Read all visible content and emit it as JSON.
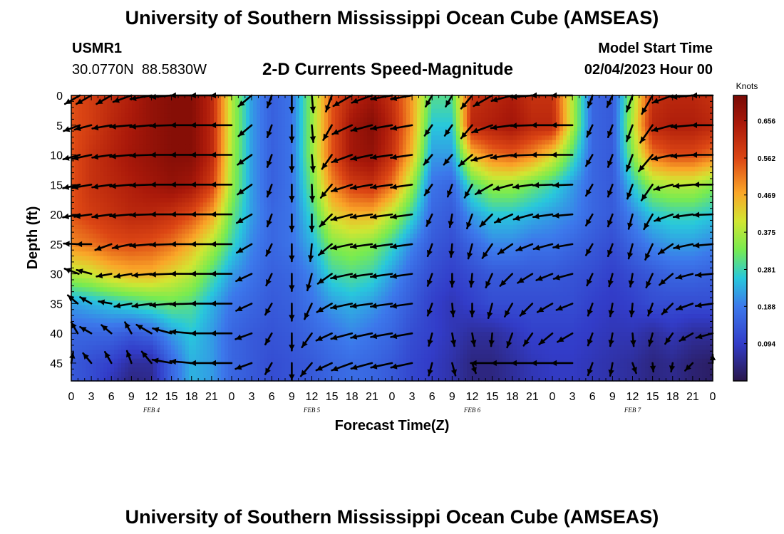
{
  "header": {
    "title": "University of Southern Mississippi Ocean Cube (AMSEAS)",
    "station": "USMR1",
    "coords": "30.0770N  88.5830W",
    "plot_name": "2-D Currents Speed-Magnitude",
    "model_label": "Model Start Time",
    "model_time": "02/04/2023 Hour 00"
  },
  "footer": {
    "title": "University of Southern Mississippi Ocean Cube (AMSEAS)"
  },
  "chart_data": {
    "type": "heatmap",
    "title": "2-D Currents Speed-Magnitude",
    "xlabel": "Forecast Time(Z)",
    "ylabel": "Depth (ft)",
    "x_ticks": [
      "0",
      "3",
      "6",
      "9",
      "12",
      "15",
      "18",
      "21",
      "0",
      "3",
      "6",
      "9",
      "12",
      "15",
      "18",
      "21",
      "0",
      "3",
      "6",
      "9",
      "12",
      "15",
      "18",
      "21",
      "0",
      "3",
      "6",
      "9",
      "12",
      "15",
      "18",
      "21",
      "0"
    ],
    "x_range_hours": [
      0,
      96
    ],
    "day_labels": [
      {
        "label": "FEB 4",
        "hour": 12
      },
      {
        "label": "FEB 5",
        "hour": 36
      },
      {
        "label": "FEB 6",
        "hour": 60
      },
      {
        "label": "FEB 7",
        "hour": 84
      }
    ],
    "y_ticks": [
      0,
      5,
      10,
      15,
      20,
      25,
      30,
      35,
      40,
      45
    ],
    "y_range_ft": [
      0,
      48
    ],
    "colorbar": {
      "unit": "Knots",
      "ticks": [
        "0.656",
        "0.562",
        "0.469",
        "0.375",
        "0.281",
        "0.188",
        "0.094"
      ],
      "tick_values": [
        0.656,
        0.562,
        0.469,
        0.375,
        0.281,
        0.188,
        0.094
      ],
      "range": [
        0.0,
        0.72
      ]
    },
    "speed_field": {
      "hours": [
        0,
        3,
        6,
        9,
        12,
        15,
        18,
        21,
        24,
        27,
        30,
        33,
        36,
        39,
        42,
        45,
        48,
        51,
        54,
        57,
        60,
        63,
        66,
        69,
        72,
        75,
        78,
        81,
        84,
        87,
        90,
        93,
        96
      ],
      "depths_ft": [
        0,
        5,
        10,
        15,
        20,
        25,
        30,
        35,
        40,
        45,
        48
      ],
      "values": [
        [
          0.55,
          0.58,
          0.61,
          0.64,
          0.68,
          0.7,
          0.7,
          0.62,
          0.38,
          0.22,
          0.15,
          0.18,
          0.35,
          0.55,
          0.62,
          0.66,
          0.6,
          0.48,
          0.3,
          0.3,
          0.6,
          0.62,
          0.64,
          0.6,
          0.6,
          0.38,
          0.16,
          0.14,
          0.36,
          0.6,
          0.62,
          0.62,
          0.6
        ],
        [
          0.55,
          0.58,
          0.62,
          0.65,
          0.68,
          0.7,
          0.7,
          0.62,
          0.38,
          0.22,
          0.15,
          0.18,
          0.35,
          0.55,
          0.66,
          0.7,
          0.62,
          0.48,
          0.26,
          0.26,
          0.62,
          0.64,
          0.66,
          0.62,
          0.62,
          0.38,
          0.16,
          0.14,
          0.38,
          0.62,
          0.64,
          0.64,
          0.62
        ],
        [
          0.55,
          0.6,
          0.63,
          0.66,
          0.68,
          0.7,
          0.7,
          0.62,
          0.37,
          0.22,
          0.15,
          0.18,
          0.35,
          0.55,
          0.66,
          0.68,
          0.6,
          0.45,
          0.22,
          0.22,
          0.45,
          0.52,
          0.54,
          0.5,
          0.42,
          0.3,
          0.16,
          0.14,
          0.34,
          0.52,
          0.56,
          0.56,
          0.52
        ],
        [
          0.55,
          0.6,
          0.62,
          0.64,
          0.66,
          0.68,
          0.66,
          0.58,
          0.36,
          0.22,
          0.15,
          0.18,
          0.32,
          0.5,
          0.58,
          0.6,
          0.52,
          0.36,
          0.18,
          0.16,
          0.3,
          0.36,
          0.36,
          0.32,
          0.28,
          0.22,
          0.16,
          0.14,
          0.26,
          0.36,
          0.38,
          0.38,
          0.34
        ],
        [
          0.55,
          0.58,
          0.6,
          0.62,
          0.62,
          0.6,
          0.56,
          0.48,
          0.32,
          0.22,
          0.16,
          0.18,
          0.28,
          0.42,
          0.46,
          0.46,
          0.38,
          0.28,
          0.16,
          0.14,
          0.22,
          0.26,
          0.26,
          0.24,
          0.22,
          0.2,
          0.16,
          0.14,
          0.2,
          0.26,
          0.28,
          0.28,
          0.26
        ],
        [
          0.5,
          0.52,
          0.55,
          0.56,
          0.55,
          0.52,
          0.46,
          0.38,
          0.28,
          0.2,
          0.16,
          0.18,
          0.24,
          0.34,
          0.36,
          0.34,
          0.28,
          0.2,
          0.14,
          0.12,
          0.16,
          0.2,
          0.2,
          0.18,
          0.18,
          0.16,
          0.14,
          0.12,
          0.16,
          0.2,
          0.22,
          0.22,
          0.2
        ],
        [
          0.38,
          0.4,
          0.44,
          0.46,
          0.46,
          0.42,
          0.38,
          0.3,
          0.22,
          0.18,
          0.15,
          0.16,
          0.2,
          0.28,
          0.3,
          0.28,
          0.22,
          0.16,
          0.12,
          0.1,
          0.12,
          0.14,
          0.14,
          0.14,
          0.14,
          0.13,
          0.12,
          0.1,
          0.12,
          0.14,
          0.16,
          0.16,
          0.15
        ],
        [
          0.22,
          0.24,
          0.26,
          0.28,
          0.3,
          0.32,
          0.3,
          0.24,
          0.18,
          0.16,
          0.14,
          0.15,
          0.18,
          0.22,
          0.24,
          0.22,
          0.18,
          0.14,
          0.1,
          0.08,
          0.1,
          0.12,
          0.12,
          0.12,
          0.12,
          0.12,
          0.1,
          0.09,
          0.1,
          0.12,
          0.12,
          0.12,
          0.12
        ],
        [
          0.16,
          0.16,
          0.16,
          0.14,
          0.16,
          0.22,
          0.26,
          0.22,
          0.16,
          0.14,
          0.13,
          0.14,
          0.16,
          0.18,
          0.2,
          0.18,
          0.16,
          0.12,
          0.1,
          0.08,
          0.06,
          0.06,
          0.08,
          0.1,
          0.1,
          0.1,
          0.09,
          0.08,
          0.08,
          0.06,
          0.08,
          0.06,
          0.06
        ],
        [
          0.14,
          0.12,
          0.1,
          0.06,
          0.06,
          0.16,
          0.24,
          0.22,
          0.16,
          0.14,
          0.12,
          0.13,
          0.14,
          0.16,
          0.17,
          0.16,
          0.14,
          0.11,
          0.09,
          0.07,
          0.04,
          0.04,
          0.06,
          0.08,
          0.09,
          0.09,
          0.08,
          0.07,
          0.06,
          0.04,
          0.05,
          0.03,
          0.02
        ],
        [
          0.14,
          0.12,
          0.08,
          0.04,
          0.05,
          0.16,
          0.24,
          0.22,
          0.16,
          0.14,
          0.12,
          0.13,
          0.14,
          0.16,
          0.17,
          0.16,
          0.14,
          0.11,
          0.09,
          0.07,
          0.04,
          0.04,
          0.06,
          0.08,
          0.09,
          0.09,
          0.08,
          0.07,
          0.06,
          0.04,
          0.05,
          0.03,
          0.02
        ]
      ]
    },
    "current_vectors": {
      "hours": [
        0,
        3,
        6,
        9,
        12,
        15,
        18,
        21,
        24,
        27,
        30,
        33,
        36,
        39,
        42,
        45,
        48,
        51,
        54,
        57,
        60,
        63,
        66,
        69,
        72,
        75,
        78,
        81,
        84,
        87,
        90,
        93,
        96
      ],
      "depths_ft": [
        0,
        5,
        10,
        15,
        20,
        25,
        30,
        35,
        40,
        45
      ],
      "direction_to_deg": [
        [
          240,
          240,
          240,
          250,
          260,
          265,
          270,
          270,
          270,
          230,
          200,
          180,
          175,
          200,
          240,
          250,
          260,
          260,
          210,
          210,
          220,
          240,
          255,
          265,
          270,
          270,
          200,
          205,
          200,
          210,
          250,
          265,
          270
        ],
        [
          250,
          255,
          260,
          265,
          265,
          268,
          270,
          270,
          270,
          230,
          200,
          180,
          175,
          210,
          245,
          255,
          260,
          260,
          215,
          215,
          220,
          250,
          262,
          268,
          270,
          270,
          205,
          200,
          200,
          215,
          255,
          265,
          270
        ],
        [
          255,
          258,
          262,
          265,
          268,
          270,
          270,
          270,
          270,
          235,
          200,
          180,
          175,
          215,
          250,
          258,
          262,
          262,
          220,
          220,
          230,
          255,
          262,
          268,
          270,
          270,
          210,
          200,
          200,
          220,
          258,
          266,
          270
        ],
        [
          258,
          260,
          262,
          265,
          268,
          270,
          270,
          270,
          270,
          235,
          200,
          180,
          178,
          220,
          252,
          260,
          262,
          262,
          215,
          200,
          210,
          240,
          255,
          262,
          268,
          268,
          210,
          200,
          200,
          215,
          255,
          265,
          270
        ],
        [
          260,
          262,
          262,
          265,
          268,
          270,
          270,
          270,
          270,
          240,
          200,
          180,
          180,
          225,
          255,
          262,
          262,
          262,
          205,
          190,
          200,
          225,
          245,
          255,
          262,
          265,
          210,
          200,
          195,
          210,
          250,
          262,
          268
        ],
        [
          272,
          270,
          250,
          258,
          265,
          268,
          270,
          270,
          270,
          240,
          205,
          180,
          185,
          230,
          258,
          262,
          262,
          262,
          200,
          185,
          195,
          215,
          235,
          248,
          255,
          260,
          210,
          200,
          195,
          205,
          235,
          258,
          265
        ],
        [
          290,
          285,
          260,
          260,
          265,
          268,
          270,
          270,
          270,
          245,
          205,
          180,
          195,
          235,
          258,
          262,
          262,
          262,
          200,
          180,
          185,
          205,
          225,
          238,
          248,
          255,
          205,
          195,
          190,
          205,
          230,
          255,
          265
        ],
        [
          310,
          300,
          280,
          260,
          262,
          265,
          268,
          270,
          270,
          245,
          210,
          180,
          205,
          240,
          258,
          262,
          262,
          262,
          200,
          175,
          180,
          195,
          210,
          225,
          240,
          248,
          200,
          190,
          185,
          200,
          225,
          250,
          262
        ],
        [
          330,
          300,
          310,
          330,
          300,
          285,
          275,
          270,
          270,
          250,
          210,
          180,
          215,
          245,
          255,
          258,
          260,
          260,
          195,
          170,
          170,
          185,
          200,
          215,
          230,
          240,
          200,
          190,
          175,
          195,
          215,
          240,
          255
        ],
        [
          10,
          320,
          330,
          340,
          320,
          280,
          275,
          270,
          270,
          250,
          210,
          180,
          220,
          245,
          250,
          255,
          258,
          258,
          195,
          165,
          160,
          270,
          270,
          270,
          270,
          270,
          200,
          190,
          160,
          175,
          190,
          225,
          0
        ]
      ],
      "relative_length": [
        [
          0.8,
          0.8,
          0.8,
          0.9,
          1.0,
          1.0,
          1.0,
          1.0,
          1.0,
          0.8,
          0.6,
          0.8,
          0.8,
          0.8,
          1.0,
          1.0,
          1.0,
          1.0,
          0.6,
          0.6,
          0.8,
          1.0,
          1.0,
          1.0,
          1.0,
          1.0,
          0.6,
          0.6,
          0.8,
          1.0,
          1.0,
          1.0,
          1.0
        ],
        [
          0.8,
          0.8,
          0.9,
          1.0,
          1.0,
          1.0,
          1.0,
          1.0,
          1.0,
          0.8,
          0.6,
          0.8,
          0.8,
          0.8,
          1.0,
          1.0,
          1.0,
          1.0,
          0.6,
          0.6,
          0.8,
          1.0,
          1.0,
          1.0,
          1.0,
          1.0,
          0.6,
          0.6,
          0.8,
          1.0,
          1.0,
          1.0,
          1.0
        ],
        [
          0.8,
          0.9,
          0.9,
          1.0,
          1.0,
          1.0,
          1.0,
          1.0,
          1.0,
          0.8,
          0.6,
          0.8,
          0.8,
          0.8,
          1.0,
          1.0,
          1.0,
          1.0,
          0.6,
          0.6,
          0.8,
          1.0,
          1.0,
          1.0,
          1.0,
          1.0,
          0.6,
          0.6,
          0.8,
          1.0,
          1.0,
          1.0,
          1.0
        ],
        [
          0.8,
          0.9,
          0.9,
          1.0,
          1.0,
          1.0,
          1.0,
          1.0,
          1.0,
          0.8,
          0.6,
          0.8,
          0.8,
          0.8,
          1.0,
          1.0,
          1.0,
          1.0,
          0.6,
          0.6,
          0.7,
          0.9,
          0.9,
          0.9,
          0.9,
          0.9,
          0.6,
          0.6,
          0.7,
          0.9,
          0.9,
          0.9,
          0.9
        ],
        [
          0.8,
          0.8,
          0.9,
          1.0,
          1.0,
          1.0,
          1.0,
          1.0,
          1.0,
          0.8,
          0.6,
          0.8,
          0.8,
          0.8,
          1.0,
          1.0,
          1.0,
          1.0,
          0.6,
          0.6,
          0.7,
          0.8,
          0.9,
          0.9,
          0.9,
          0.9,
          0.6,
          0.6,
          0.7,
          0.8,
          0.9,
          0.9,
          0.9
        ],
        [
          0.7,
          0.7,
          0.8,
          0.9,
          1.0,
          1.0,
          1.0,
          1.0,
          1.0,
          0.8,
          0.6,
          0.8,
          0.8,
          0.8,
          1.0,
          1.0,
          1.0,
          1.0,
          0.6,
          0.6,
          0.7,
          0.8,
          0.8,
          0.8,
          0.9,
          0.9,
          0.6,
          0.6,
          0.7,
          0.8,
          0.8,
          0.9,
          0.9
        ],
        [
          0.7,
          0.7,
          0.7,
          0.8,
          0.9,
          1.0,
          1.0,
          1.0,
          1.0,
          0.8,
          0.6,
          0.8,
          0.8,
          0.8,
          1.0,
          1.0,
          1.0,
          1.0,
          0.6,
          0.6,
          0.6,
          0.7,
          0.8,
          0.8,
          0.8,
          0.9,
          0.6,
          0.6,
          0.6,
          0.7,
          0.8,
          0.8,
          0.8
        ],
        [
          0.6,
          0.6,
          0.6,
          0.8,
          0.9,
          1.0,
          1.0,
          1.0,
          1.0,
          0.8,
          0.6,
          0.8,
          0.8,
          0.8,
          1.0,
          1.0,
          1.0,
          1.0,
          0.6,
          0.6,
          0.6,
          0.7,
          0.7,
          0.8,
          0.8,
          0.8,
          0.6,
          0.6,
          0.6,
          0.6,
          0.7,
          0.8,
          0.8
        ],
        [
          0.6,
          0.6,
          0.6,
          0.6,
          0.8,
          0.9,
          1.0,
          1.0,
          1.0,
          0.8,
          0.6,
          0.8,
          0.8,
          0.8,
          1.0,
          1.0,
          1.0,
          1.0,
          0.6,
          0.6,
          0.6,
          0.6,
          0.7,
          0.7,
          0.8,
          0.8,
          0.6,
          0.6,
          0.6,
          0.6,
          0.6,
          0.7,
          0.8
        ],
        [
          0.5,
          0.6,
          0.6,
          0.6,
          0.7,
          0.9,
          1.0,
          1.0,
          1.0,
          0.8,
          0.6,
          0.8,
          0.8,
          0.8,
          1.0,
          1.0,
          1.0,
          1.0,
          0.6,
          0.6,
          0.5,
          1.0,
          1.0,
          1.0,
          1.0,
          1.0,
          0.6,
          0.6,
          0.5,
          0.4,
          0.4,
          0.5,
          0.4
        ]
      ]
    }
  }
}
